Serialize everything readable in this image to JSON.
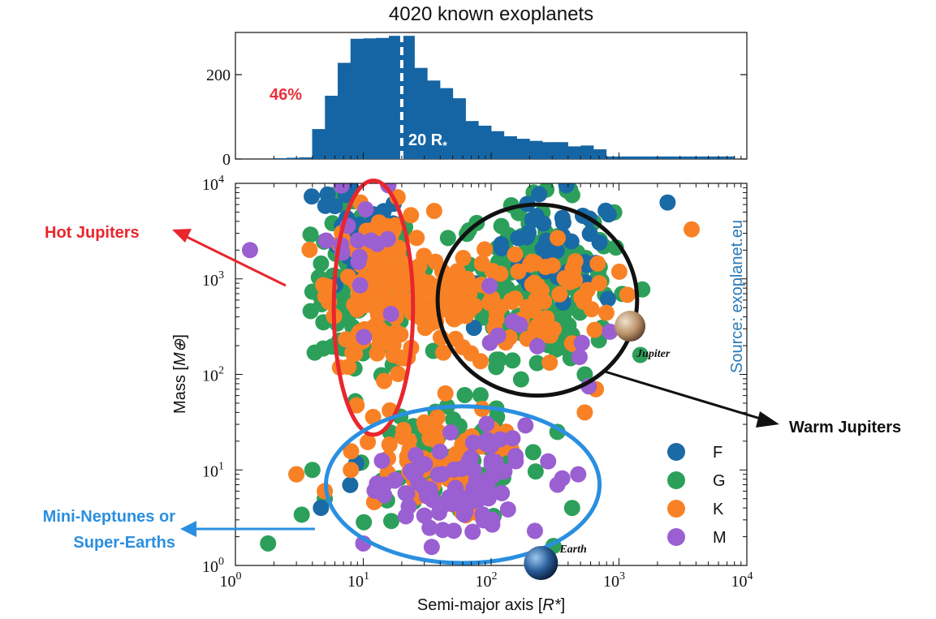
{
  "chart_data": [
    {
      "type": "bar",
      "subtype": "histogram",
      "title": "4020 known exoplanets",
      "xscale": "log",
      "xlim": [
        1,
        10000
      ],
      "ylim": [
        0,
        300
      ],
      "yticks": [
        0,
        200
      ],
      "bar_color": "#1565a4",
      "bins_log_start": 0.1,
      "bins_log_width": 0.1,
      "counts": [
        0,
        0,
        2,
        3,
        4,
        71,
        150,
        228,
        285,
        286,
        287,
        292,
        292,
        216,
        186,
        168,
        144,
        90,
        79,
        66,
        54,
        48,
        43,
        40,
        40,
        30,
        32,
        23,
        6,
        6,
        6,
        6,
        6,
        6,
        6,
        6,
        6,
        6
      ],
      "median_line": 20,
      "annotations": [
        {
          "text": "46%",
          "color": "#e8323c"
        },
        {
          "text": "20 R",
          "color": "#ffffff"
        }
      ]
    },
    {
      "type": "scatter",
      "xlabel": "Semi-major axis",
      "xunit": "R*",
      "ylabel": "Mass",
      "yunit": "M⊕",
      "xscale": "log",
      "yscale": "log",
      "xlim": [
        1,
        10000
      ],
      "ylim": [
        1,
        10000
      ],
      "ticks": [
        {
          "base": "10",
          "exp": "0"
        },
        {
          "base": "10",
          "exp": "1"
        },
        {
          "base": "10",
          "exp": "2"
        },
        {
          "base": "10",
          "exp": "3"
        },
        {
          "base": "10",
          "exp": "4"
        }
      ],
      "legend": {
        "placement": "bottom-right"
      },
      "series": [
        {
          "name": "F",
          "color": "#1a6aa6",
          "clusters": [
            {
              "cx": 0.95,
              "cy": 3.35,
              "sx": 0.18,
              "sy": 0.28,
              "n": 25
            },
            {
              "cx": 2.5,
              "cy": 3.25,
              "sx": 0.28,
              "sy": 0.3,
              "n": 45
            },
            {
              "cx": 0.6,
              "cy": 3.85,
              "sx": 0.05,
              "sy": 0.05,
              "n": 2
            },
            {
              "cx": 1.3,
              "cy": 0.9,
              "sx": 0.4,
              "sy": 0.3,
              "n": 4
            }
          ],
          "points": [
            [
              2400,
              6300
            ]
          ]
        },
        {
          "name": "G",
          "color": "#2ca05a",
          "clusters": [
            {
              "cx": 1.0,
              "cy": 2.9,
              "sx": 0.2,
              "sy": 0.45,
              "n": 120
            },
            {
              "cx": 2.35,
              "cy": 3.0,
              "sx": 0.3,
              "sy": 0.4,
              "n": 190
            },
            {
              "cx": 1.7,
              "cy": 1.1,
              "sx": 0.35,
              "sy": 0.35,
              "n": 70
            }
          ],
          "points": [
            [
              1.8,
              1.7
            ],
            [
              3.3,
              3.4
            ],
            [
              4,
              10
            ],
            [
              3,
              9
            ],
            [
              5,
              5
            ],
            [
              430,
              4
            ],
            [
              330,
              25
            ],
            [
              540,
              100
            ]
          ]
        },
        {
          "name": "K",
          "color": "#f98125",
          "clusters": [
            {
              "cx": 1.15,
              "cy": 2.9,
              "sx": 0.2,
              "sy": 0.4,
              "n": 160
            },
            {
              "cx": 1.75,
              "cy": 2.8,
              "sx": 0.15,
              "sy": 0.15,
              "n": 60
            },
            {
              "cx": 2.35,
              "cy": 2.8,
              "sx": 0.3,
              "sy": 0.35,
              "n": 70
            },
            {
              "cx": 1.45,
              "cy": 1.1,
              "sx": 0.3,
              "sy": 0.3,
              "n": 55
            }
          ],
          "points": [
            [
              3700,
              3300
            ],
            [
              3,
              9
            ],
            [
              5,
              6
            ],
            [
              8,
              10
            ],
            [
              540,
              40
            ],
            [
              660,
              70
            ],
            [
              700,
              900
            ]
          ]
        },
        {
          "name": "M",
          "color": "#9a5fd1",
          "clusters": [
            {
              "cx": 1.65,
              "cy": 0.75,
              "sx": 0.25,
              "sy": 0.25,
              "n": 70
            },
            {
              "cx": 2.1,
              "cy": 1.1,
              "sx": 0.2,
              "sy": 0.2,
              "n": 18
            },
            {
              "cx": 1.0,
              "cy": 3.2,
              "sx": 0.2,
              "sy": 0.5,
              "n": 16
            },
            {
              "cx": 2.3,
              "cy": 2.6,
              "sx": 0.3,
              "sy": 0.3,
              "n": 8
            }
          ],
          "points": [
            [
              1.3,
              2000
            ],
            [
              580,
              75
            ],
            [
              850,
              280
            ],
            [
              480,
              9
            ],
            [
              330,
              7
            ],
            [
              220,
              2.3
            ],
            [
              10,
              1.7
            ]
          ]
        }
      ],
      "regions": [
        {
          "label": "Hot Jupiters",
          "color": "#e8262e",
          "cx": 12,
          "cy": 500,
          "rx_dex": 0.31,
          "ry_dex": 1.33
        },
        {
          "label": "Warm Jupiters",
          "color": "#111111",
          "cx": 230,
          "cy": 600,
          "rx_dex": 0.78,
          "ry_dex": 1.0
        },
        {
          "label": "Mini-Neptunes or Super-Earths",
          "color": "#2a8fe0",
          "cx": 60,
          "cy": 7,
          "rx_dex": 1.07,
          "ry_dex": 0.82
        }
      ],
      "markers": [
        {
          "label": "Jupiter",
          "x": 1150,
          "y": 320
        },
        {
          "label": "Earth",
          "x": 215,
          "y": 1
        }
      ],
      "source_note": "Source: exoplanet.eu"
    }
  ],
  "callouts": {
    "hot": "Hot Jupiters",
    "warm": "Warm Jupiters",
    "mini_line1": "Mini-Neptunes or",
    "mini_line2": "Super-Earths"
  }
}
